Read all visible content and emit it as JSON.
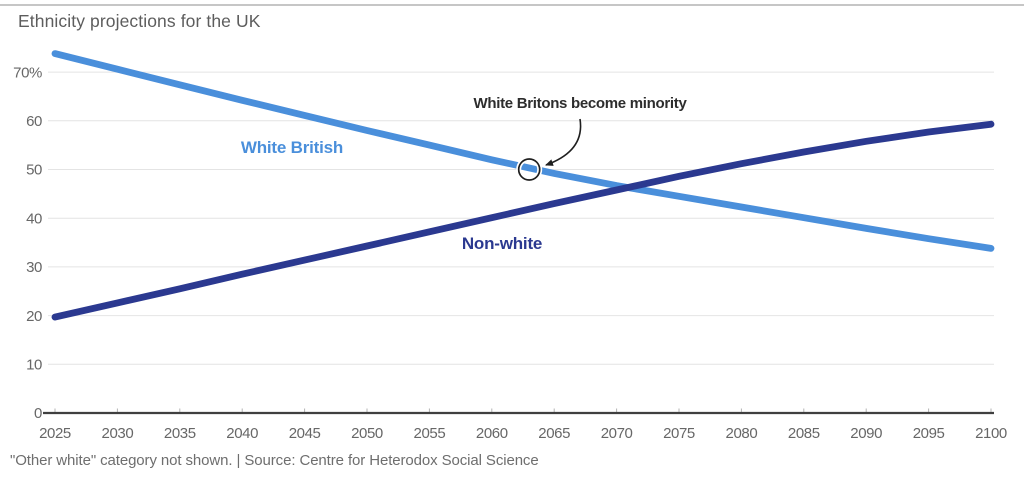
{
  "header": {
    "title": "Ethnicity projections for the UK"
  },
  "footer": {
    "text": "\"Other white\" category not shown. | Source: Centre for Heterodox Social Science"
  },
  "chart_data": {
    "type": "line",
    "title": "Ethnicity projections for the UK",
    "x": [
      2025,
      2030,
      2035,
      2040,
      2045,
      2050,
      2055,
      2060,
      2065,
      2070,
      2075,
      2080,
      2085,
      2090,
      2095,
      2100
    ],
    "series": [
      {
        "name": "White British",
        "color": "#4a8fdb",
        "values": [
          73.8,
          70.6,
          67.4,
          64.2,
          61.1,
          58.0,
          55.0,
          52.0,
          49.2,
          46.7,
          44.5,
          42.3,
          40.1,
          37.9,
          35.8,
          33.8
        ]
      },
      {
        "name": "Non-white",
        "color": "#2b3990",
        "values": [
          19.7,
          22.6,
          25.5,
          28.5,
          31.4,
          34.3,
          37.2,
          40.1,
          43.0,
          45.8,
          48.6,
          51.2,
          53.6,
          55.8,
          57.7,
          59.3
        ]
      }
    ],
    "annotation": {
      "text": "White Britons become minority",
      "point": {
        "year": 2063,
        "value": 50
      }
    },
    "xlabel": "",
    "ylabel": "",
    "ylim": [
      0,
      75
    ],
    "xlim": [
      2025,
      2100
    ],
    "yticks": [
      0,
      10,
      20,
      30,
      40,
      50,
      60,
      70
    ],
    "ytick_labels": [
      "0",
      "10",
      "20",
      "30",
      "40",
      "50",
      "60",
      "70%"
    ],
    "xticks": [
      2025,
      2030,
      2035,
      2040,
      2045,
      2050,
      2055,
      2060,
      2065,
      2070,
      2075,
      2080,
      2085,
      2090,
      2095,
      2100
    ],
    "grid": "horizontal",
    "legend_position": "inline-labels",
    "colors": {
      "grid": "#e4e4e4",
      "axis": "#3f3f3f",
      "tick_text": "#676767",
      "annotation": "#1f1f1f"
    }
  }
}
